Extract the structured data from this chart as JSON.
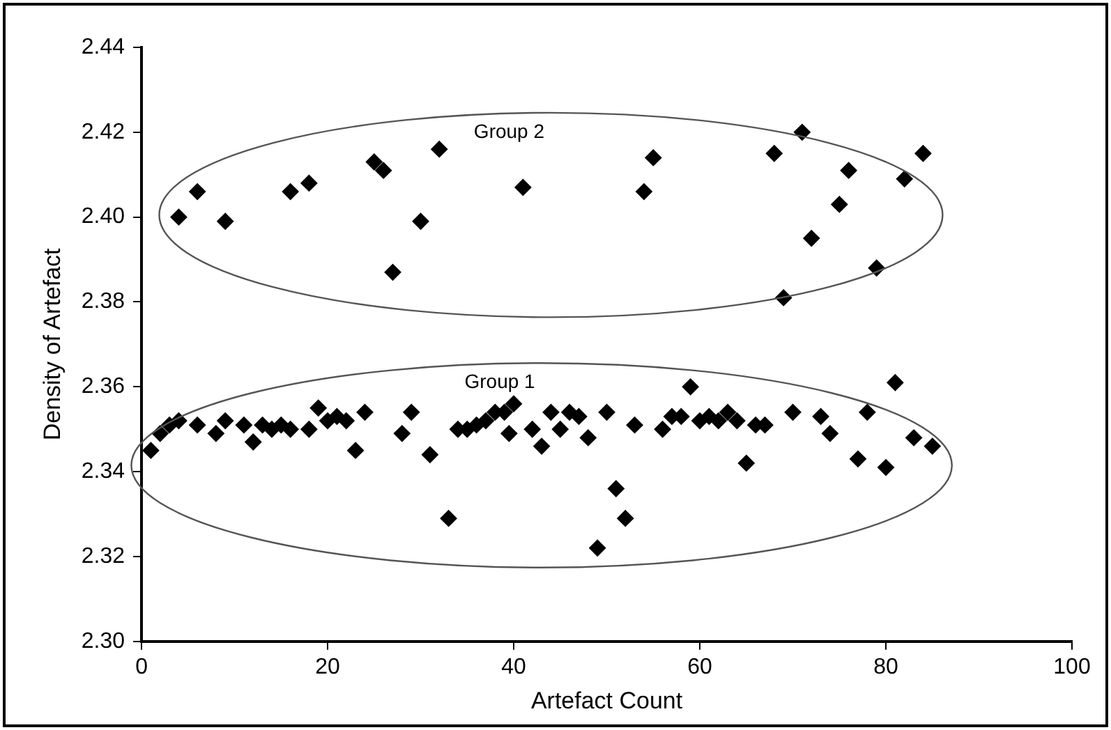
{
  "chart_data": {
    "type": "scatter",
    "xlabel": "Artefact Count",
    "ylabel": "Density of Artefact",
    "xlim": [
      0,
      100
    ],
    "xticks": [
      0,
      20,
      40,
      60,
      80,
      100
    ],
    "ylim": [
      2.3,
      2.44
    ],
    "yticks": [
      {
        "value": 2.3,
        "label": "2.30"
      },
      {
        "value": 2.32,
        "label": "2.32"
      },
      {
        "value": 2.34,
        "label": "2.34"
      },
      {
        "value": 2.36,
        "label": "2.36"
      },
      {
        "value": 2.38,
        "label": "2.38"
      },
      {
        "value": 2.4,
        "label": "2.40"
      },
      {
        "value": 2.42,
        "label": "2.42"
      },
      {
        "value": 2.44,
        "label": "2.44"
      }
    ],
    "grid": false,
    "legend": false,
    "marker": "diamond",
    "series": [
      {
        "color": "#000000",
        "x": [
          4,
          6,
          9,
          16,
          18,
          25,
          26,
          27,
          30,
          32,
          41,
          54,
          55,
          68,
          69,
          71,
          72,
          75,
          76,
          79,
          82,
          84
        ],
        "values": [
          2.4,
          2.406,
          2.399,
          2.406,
          2.408,
          2.413,
          2.411,
          2.387,
          2.399,
          2.416,
          2.407,
          2.406,
          2.414,
          2.415,
          2.381,
          2.42,
          2.395,
          2.403,
          2.411,
          2.388,
          2.409,
          2.415
        ]
      },
      {
        "color": "#000000",
        "x": [
          1,
          2,
          3,
          4,
          6,
          8,
          9,
          11,
          12,
          13,
          14,
          15,
          16,
          18,
          19,
          20,
          21,
          22,
          23,
          24,
          28,
          29,
          31,
          33,
          34,
          35,
          36,
          37,
          38,
          39,
          40,
          39.5,
          42,
          43,
          44,
          45,
          46,
          47,
          48,
          49,
          50,
          51,
          52,
          53,
          56,
          57,
          58,
          59,
          60,
          61,
          62,
          63,
          64,
          65,
          66,
          67,
          70,
          73,
          74,
          77,
          78,
          80,
          81,
          83,
          85
        ],
        "values": [
          2.345,
          2.349,
          2.351,
          2.352,
          2.351,
          2.349,
          2.352,
          2.351,
          2.347,
          2.351,
          2.35,
          2.351,
          2.35,
          2.35,
          2.355,
          2.352,
          2.353,
          2.352,
          2.345,
          2.354,
          2.349,
          2.354,
          2.344,
          2.329,
          2.35,
          2.35,
          2.351,
          2.352,
          2.354,
          2.354,
          2.356,
          2.349,
          2.35,
          2.346,
          2.354,
          2.35,
          2.354,
          2.353,
          2.348,
          2.322,
          2.354,
          2.336,
          2.329,
          2.351,
          2.35,
          2.353,
          2.353,
          2.36,
          2.352,
          2.353,
          2.352,
          2.354,
          2.352,
          2.342,
          2.351,
          2.351,
          2.354,
          2.353,
          2.349,
          2.343,
          2.354,
          2.341,
          2.361,
          2.348,
          2.346
        ]
      }
    ],
    "annotations": [
      "Group 2",
      "Group 1"
    ]
  }
}
